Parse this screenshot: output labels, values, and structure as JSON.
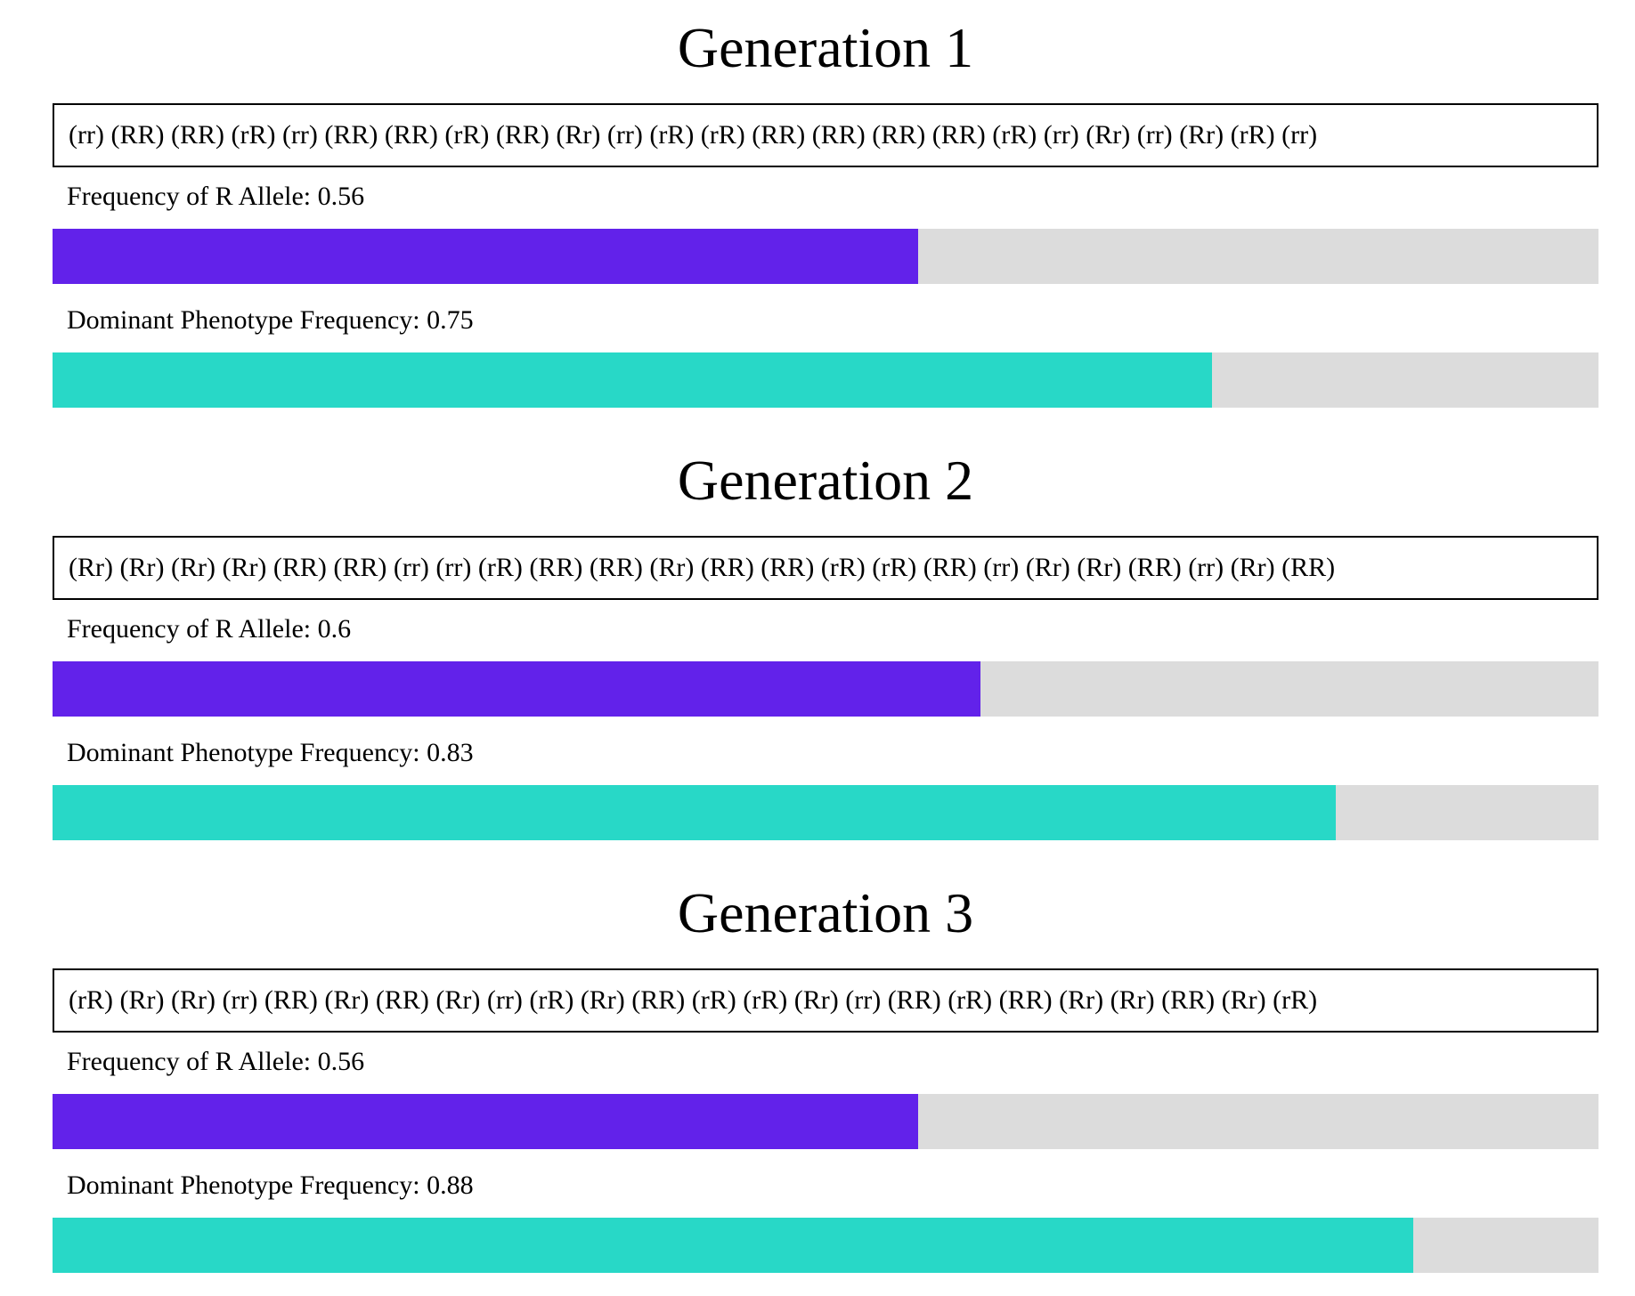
{
  "colors": {
    "allele_bar": "#6222ea",
    "phenotype_bar": "#28d8c7",
    "track": "#dcdcdc"
  },
  "generations": [
    {
      "title": "Generation 1",
      "genotypes": "(rr) (RR) (RR) (rR) (rr) (RR) (RR) (rR) (RR) (Rr) (rr) (rR) (rR) (RR) (RR) (RR) (RR) (rR) (rr) (Rr) (rr) (Rr) (rR) (rr)",
      "allele_label": "Frequency of R Allele: 0.56",
      "allele_frequency": 0.56,
      "phenotype_label": "Dominant Phenotype Frequency: 0.75",
      "phenotype_frequency": 0.75
    },
    {
      "title": "Generation 2",
      "genotypes": "(Rr) (Rr) (Rr) (Rr) (RR) (RR) (rr) (rr) (rR) (RR) (RR) (Rr) (RR) (RR) (rR) (rR) (RR) (rr) (Rr) (Rr) (RR) (rr) (Rr) (RR)",
      "allele_label": "Frequency of R Allele: 0.6",
      "allele_frequency": 0.6,
      "phenotype_label": "Dominant Phenotype Frequency: 0.83",
      "phenotype_frequency": 0.83
    },
    {
      "title": "Generation 3",
      "genotypes": "(rR) (Rr) (Rr) (rr) (RR) (Rr) (RR) (Rr) (rr) (rR) (Rr) (RR) (rR) (rR) (Rr) (rr) (RR) (rR) (RR) (Rr) (Rr) (RR) (Rr) (rR)",
      "allele_label": "Frequency of R Allele: 0.56",
      "allele_frequency": 0.56,
      "phenotype_label": "Dominant Phenotype Frequency: 0.88",
      "phenotype_frequency": 0.88
    }
  ]
}
